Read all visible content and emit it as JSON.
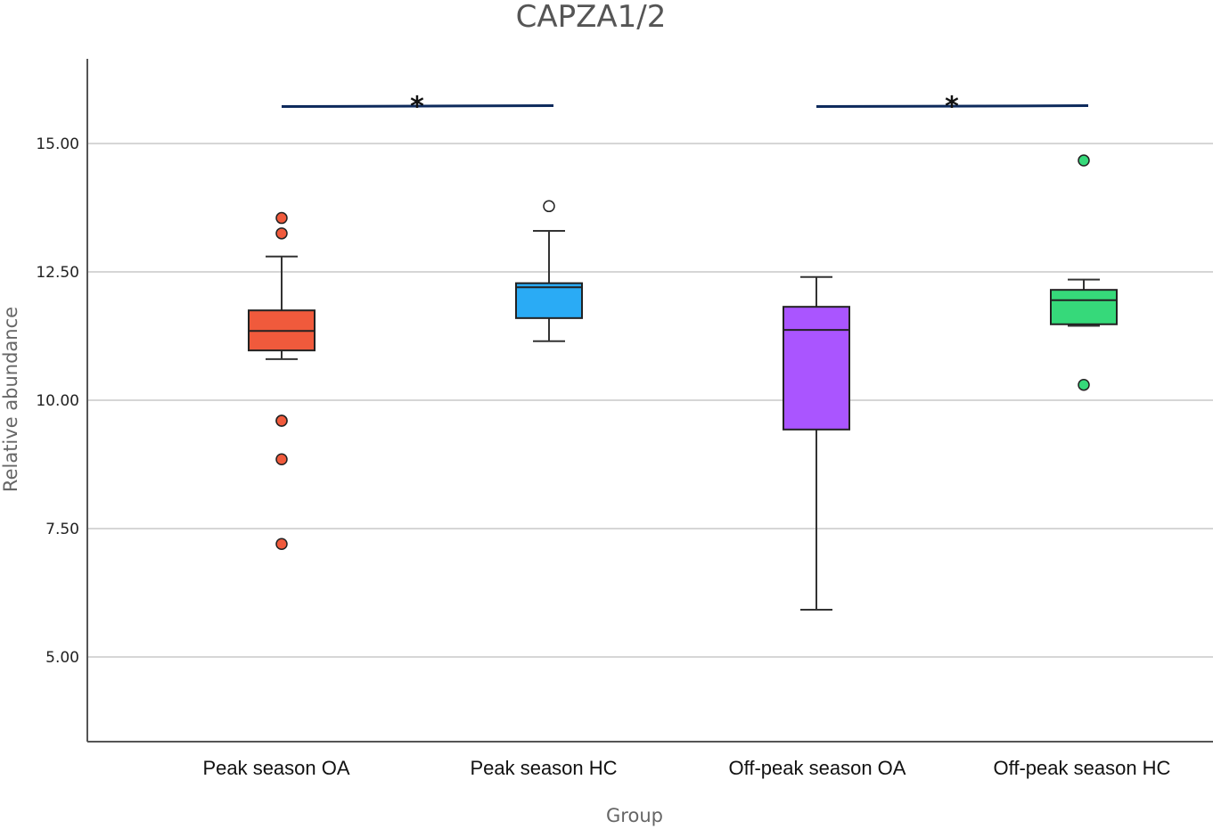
{
  "chart_data": {
    "type": "boxplot",
    "title": "CAPZA1/2",
    "xlabel": "Group",
    "ylabel": "Relative abundance",
    "ylim": [
      3.35,
      16.65
    ],
    "yticks": [
      5.0,
      7.5,
      10.0,
      12.5,
      15.0
    ],
    "ytick_labels": [
      "5.00",
      "7.50",
      "10.00",
      "12.50",
      "15.00"
    ],
    "grid": true,
    "categories": [
      "Peak season OA",
      "Peak season HC",
      "Off-peak season OA",
      "Off-peak season HC"
    ],
    "boxes": [
      {
        "name": "Peak season OA",
        "color": "#f05a3c",
        "whisker_low": 10.8,
        "q1": 10.97,
        "median": 11.35,
        "q3": 11.75,
        "whisker_high": 12.8,
        "outliers": [
          13.55,
          13.25,
          9.6,
          9.6,
          8.85,
          7.2
        ],
        "outlier_fill": "#f05a3c"
      },
      {
        "name": "Peak season HC",
        "color": "#2aabf5",
        "whisker_low": 11.15,
        "q1": 11.6,
        "median": 12.2,
        "q3": 12.28,
        "whisker_high": 13.3,
        "outliers": [
          13.78
        ],
        "outlier_fill": "#ffffff"
      },
      {
        "name": "Off-peak season OA",
        "color": "#aa55ff",
        "whisker_low": 5.92,
        "q1": 9.43,
        "median": 11.37,
        "q3": 11.82,
        "whisker_high": 12.4,
        "outliers": [],
        "outlier_fill": "#aa55ff"
      },
      {
        "name": "Off-peak season HC",
        "color": "#36d97a",
        "whisker_low": 11.45,
        "q1": 11.48,
        "median": 11.95,
        "q3": 12.15,
        "whisker_high": 12.35,
        "outliers": [
          14.67,
          10.3
        ],
        "outlier_fill": "#36d97a"
      }
    ],
    "significance": [
      {
        "from": 0,
        "to": 1,
        "label": "*",
        "y": 15.72
      },
      {
        "from": 2,
        "to": 3,
        "label": "*",
        "y": 15.72
      }
    ],
    "significance_color": "#0d2a5c"
  }
}
